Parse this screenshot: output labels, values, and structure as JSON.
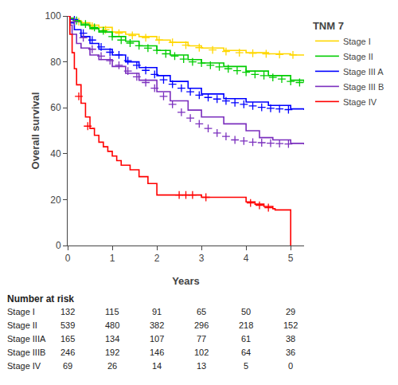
{
  "chart_data": {
    "type": "step",
    "title": "TNM 7",
    "xlabel": "Years",
    "ylabel": "Overall survival",
    "xlim": [
      0,
      5.3
    ],
    "ylim": [
      0,
      100
    ],
    "xticks": [
      0,
      1,
      2,
      3,
      4,
      5
    ],
    "yticks": [
      0,
      20,
      40,
      60,
      80,
      100
    ],
    "grid": false,
    "legend": "right",
    "marker": "+",
    "series": [
      {
        "name": "Stage I",
        "color": "#FFD700",
        "x": [
          0,
          0.05,
          0.15,
          0.3,
          0.5,
          0.7,
          1.0,
          1.3,
          1.6,
          2.0,
          2.3,
          2.7,
          3.0,
          3.5,
          4.0,
          4.5,
          5.0,
          5.3
        ],
        "values": [
          100,
          99,
          98,
          97,
          96,
          95,
          93,
          92,
          91,
          89.5,
          88.5,
          87,
          86,
          85,
          84,
          83.5,
          83,
          83
        ],
        "censor_x": [
          0.25,
          0.55,
          0.85,
          1.15,
          1.45,
          1.75,
          2.05,
          2.35,
          2.65,
          2.95,
          3.25,
          3.55,
          3.85,
          4.15,
          4.45,
          4.75,
          5.05
        ],
        "censor_values": [
          97.5,
          95.5,
          94.0,
          92.5,
          91.5,
          90.5,
          89.5,
          88.5,
          87.3,
          86.2,
          85.2,
          84.5,
          84.0,
          83.7,
          83.5,
          83.2,
          83.0
        ]
      },
      {
        "name": "Stage II",
        "color": "#00CC00",
        "x": [
          0,
          0.05,
          0.15,
          0.3,
          0.5,
          0.7,
          1.0,
          1.3,
          1.6,
          2.0,
          2.3,
          2.7,
          3.0,
          3.5,
          4.0,
          4.5,
          5.0,
          5.3
        ],
        "values": [
          100,
          99,
          97.5,
          96,
          94.5,
          93,
          91,
          89,
          87,
          85,
          83,
          81,
          79.5,
          78,
          76,
          74,
          72,
          71
        ],
        "censor_x": [
          0.2,
          0.4,
          0.6,
          0.8,
          1.0,
          1.2,
          1.4,
          1.6,
          1.8,
          2.0,
          2.2,
          2.4,
          2.6,
          2.8,
          3.0,
          3.2,
          3.4,
          3.6,
          3.8,
          4.0,
          4.2,
          4.4,
          4.6,
          4.8,
          5.0,
          5.2
        ],
        "censor_values": [
          98.0,
          96.5,
          95.0,
          93.5,
          91.0,
          89.5,
          88.2,
          87.0,
          86.0,
          85.0,
          83.5,
          82.5,
          81.2,
          80.0,
          79.5,
          78.5,
          77.8,
          77.0,
          76.2,
          75.5,
          74.5,
          74.0,
          73.2,
          72.5,
          71.5,
          71.0
        ]
      },
      {
        "name": "Stage III A",
        "color": "#0000FF",
        "x": [
          0,
          0.05,
          0.15,
          0.3,
          0.5,
          0.7,
          1.0,
          1.3,
          1.6,
          2.0,
          2.3,
          2.7,
          3.0,
          3.5,
          4.0,
          4.5,
          5.0,
          5.3
        ],
        "values": [
          100,
          97,
          94,
          91,
          88,
          85.5,
          83,
          80,
          77.5,
          74,
          71.5,
          68.5,
          66,
          64,
          62.5,
          61,
          59.5,
          59
        ],
        "censor_x": [
          0.15,
          0.35,
          0.55,
          0.75,
          0.95,
          1.15,
          1.35,
          1.55,
          1.75,
          1.95,
          2.15,
          2.35,
          2.55,
          2.75,
          2.95,
          3.15,
          3.35,
          3.55,
          3.75,
          3.95,
          4.15,
          4.35,
          4.55,
          4.75,
          4.95
        ],
        "censor_values": [
          98.5,
          92.5,
          89.5,
          86.5,
          84.2,
          83.0,
          80.5,
          78.5,
          76.3,
          74.5,
          72.2,
          70.3,
          68.5,
          67.0,
          65.5,
          64.5,
          63.8,
          63.0,
          62.2,
          61.5,
          60.8,
          60.2,
          59.8,
          59.5,
          59.2
        ]
      },
      {
        "name": "Stage III B",
        "color": "#7B2FBE",
        "x": [
          0,
          0.05,
          0.1,
          0.2,
          0.3,
          0.5,
          0.7,
          1.0,
          1.3,
          1.6,
          2.0,
          2.3,
          2.7,
          3.0,
          3.5,
          4.0,
          4.3,
          4.6,
          5.0,
          5.3
        ],
        "values": [
          100,
          96,
          92,
          88,
          86,
          83,
          81,
          78,
          75,
          72,
          67,
          63,
          59,
          56,
          53,
          50,
          47,
          46,
          44.5,
          44
        ],
        "censor_x": [
          0.15,
          0.35,
          0.55,
          0.75,
          0.95,
          1.15,
          1.35,
          1.55,
          1.75,
          1.95,
          2.15,
          2.35,
          2.55,
          2.75,
          2.95,
          3.15,
          3.35,
          3.55,
          3.75,
          3.95,
          4.15,
          4.35,
          4.55,
          4.75,
          4.95
        ],
        "censor_values": [
          97.5,
          90.5,
          85.5,
          82.5,
          80.5,
          78.5,
          76.0,
          73.5,
          71.0,
          68.5,
          65.0,
          61.5,
          58.0,
          55.5,
          53.0,
          51.0,
          49.0,
          47.5,
          46.0,
          45.5,
          45.0,
          44.8,
          44.6,
          44.4,
          44.2
        ]
      },
      {
        "name": "Stage IV",
        "color": "#FF0000",
        "x": [
          0,
          0.05,
          0.1,
          0.15,
          0.2,
          0.3,
          0.4,
          0.5,
          0.6,
          0.7,
          0.8,
          0.9,
          1.0,
          1.1,
          1.2,
          1.4,
          1.6,
          1.8,
          2.0,
          2.2,
          2.4,
          2.6,
          2.8,
          3.0,
          3.2,
          3.4,
          3.6,
          3.8,
          4.0,
          4.2,
          4.4,
          4.6,
          4.65,
          5.0
        ],
        "values": [
          100,
          92,
          84,
          77,
          70,
          62,
          56,
          51,
          48,
          45,
          43,
          41,
          39,
          37,
          35,
          33,
          30,
          27,
          22,
          22,
          22,
          22,
          22,
          21,
          21,
          21,
          21,
          21,
          19,
          18,
          17,
          16,
          15.5,
          0
        ],
        "censor_x": [
          0.25,
          0.45,
          2.5,
          2.65,
          2.8,
          3.1,
          4.1,
          4.3,
          4.5
        ],
        "censor_values": [
          65,
          52,
          22,
          22,
          22,
          21,
          18.5,
          17.5,
          16.5
        ]
      }
    ],
    "risk_table": {
      "title": "Number at risk",
      "labels": [
        "Stage I",
        "Stage II",
        "Stage IIIA",
        "Stage IIIB",
        "Stage IV"
      ],
      "times": [
        0,
        1,
        2,
        3,
        4,
        5
      ],
      "values": [
        [
          132,
          115,
          91,
          65,
          50,
          29
        ],
        [
          539,
          480,
          382,
          296,
          218,
          152
        ],
        [
          165,
          134,
          107,
          77,
          61,
          38
        ],
        [
          246,
          192,
          146,
          102,
          64,
          36
        ],
        [
          69,
          26,
          14,
          13,
          5,
          0
        ]
      ]
    }
  }
}
